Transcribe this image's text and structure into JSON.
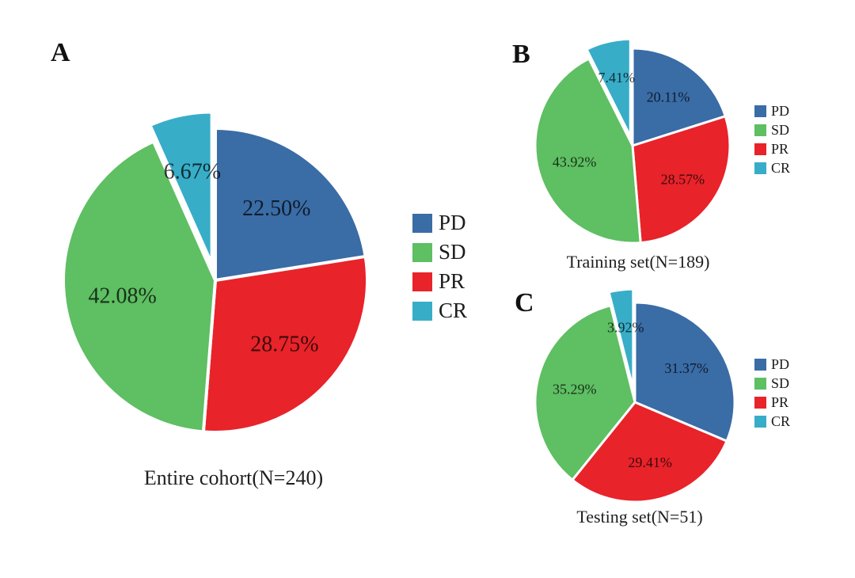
{
  "figure": {
    "background_color": "#ffffff",
    "legend_labels": [
      "PD",
      "SD",
      "PR",
      "CR"
    ],
    "colors": {
      "PD": "#3a6ca6",
      "SD": "#5ebf63",
      "PR": "#e8232a",
      "CR": "#38adc8"
    }
  },
  "chart_data": [
    {
      "type": "pie",
      "panel": "A",
      "title": "Entire cohort(N=240)",
      "n": 240,
      "legend_position": "right",
      "slices_clockwise_from_top": [
        {
          "name": "PD",
          "value": 22.5,
          "display": "22.50%",
          "exploded": false
        },
        {
          "name": "PR",
          "value": 28.75,
          "display": "28.75%",
          "exploded": false
        },
        {
          "name": "SD",
          "value": 42.08,
          "display": "42.08%",
          "exploded": false
        },
        {
          "name": "CR",
          "value": 6.67,
          "display": "6.67%",
          "exploded": true
        }
      ]
    },
    {
      "type": "pie",
      "panel": "B",
      "title": "Training set(N=189)",
      "n": 189,
      "legend_position": "right",
      "slices_clockwise_from_top": [
        {
          "name": "PD",
          "value": 20.11,
          "display": "20.11%",
          "exploded": false
        },
        {
          "name": "PR",
          "value": 28.57,
          "display": "28.57%",
          "exploded": false
        },
        {
          "name": "SD",
          "value": 43.92,
          "display": "43.92%",
          "exploded": false
        },
        {
          "name": "CR",
          "value": 7.41,
          "display": "7.41%",
          "exploded": true
        }
      ]
    },
    {
      "type": "pie",
      "panel": "C",
      "title": "Testing set(N=51)",
      "n": 51,
      "legend_position": "right",
      "slices_clockwise_from_top": [
        {
          "name": "PD",
          "value": 31.37,
          "display": "31.37%",
          "exploded": false
        },
        {
          "name": "PR",
          "value": 29.41,
          "display": "29.41%",
          "exploded": false
        },
        {
          "name": "SD",
          "value": 35.29,
          "display": "35.29%",
          "exploded": false
        },
        {
          "name": "CR",
          "value": 3.92,
          "display": "3.92%",
          "exploded": true
        }
      ]
    }
  ]
}
